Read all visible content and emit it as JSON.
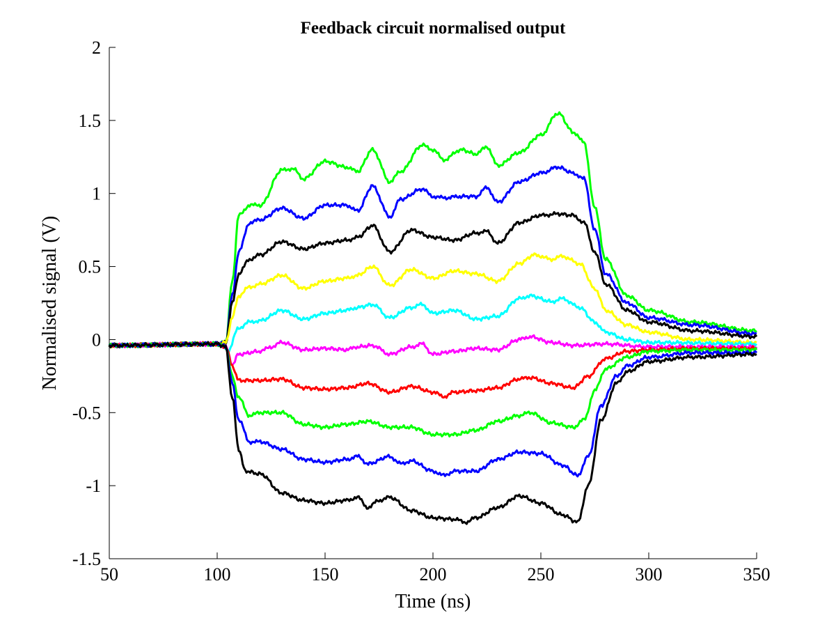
{
  "chart_data": {
    "type": "line",
    "title": "Feedback circuit normalised output",
    "xlabel": "Time (ns)",
    "ylabel": "Normalised signal (V)",
    "xlim": [
      50,
      350
    ],
    "ylim": [
      -1.5,
      2
    ],
    "xticks": [
      50,
      100,
      150,
      200,
      250,
      300,
      350
    ],
    "xtick_labels": [
      "50",
      "100",
      "150",
      "200",
      "250",
      "300",
      "350"
    ],
    "yticks": [
      -1.5,
      -1,
      -0.5,
      0,
      0.5,
      1,
      1.5,
      2
    ],
    "ytick_labels": [
      "-1.5",
      "-1",
      "-0.5",
      "0",
      "0.5",
      "1",
      "1.5",
      "2"
    ],
    "grid": false,
    "series": [
      {
        "name": "green-upper",
        "color": "#00ff00",
        "points": [
          [
            50,
            -0.04
          ],
          [
            100,
            -0.03
          ],
          [
            104,
            -0.02
          ],
          [
            107,
            0.4
          ],
          [
            110,
            0.85
          ],
          [
            115,
            0.92
          ],
          [
            120,
            0.92
          ],
          [
            130,
            1.16
          ],
          [
            135,
            1.17
          ],
          [
            140,
            1.1
          ],
          [
            150,
            1.22
          ],
          [
            160,
            1.18
          ],
          [
            165,
            1.15
          ],
          [
            172,
            1.3
          ],
          [
            180,
            1.08
          ],
          [
            185,
            1.15
          ],
          [
            195,
            1.33
          ],
          [
            200,
            1.3
          ],
          [
            205,
            1.23
          ],
          [
            213,
            1.3
          ],
          [
            220,
            1.27
          ],
          [
            225,
            1.32
          ],
          [
            230,
            1.19
          ],
          [
            240,
            1.28
          ],
          [
            250,
            1.4
          ],
          [
            258,
            1.55
          ],
          [
            265,
            1.42
          ],
          [
            270,
            1.35
          ],
          [
            275,
            0.9
          ],
          [
            280,
            0.55
          ],
          [
            290,
            0.3
          ],
          [
            300,
            0.2
          ],
          [
            320,
            0.12
          ],
          [
            350,
            0.06
          ]
        ]
      },
      {
        "name": "blue-upper",
        "color": "#0000ff",
        "points": [
          [
            50,
            -0.04
          ],
          [
            100,
            -0.03
          ],
          [
            104,
            -0.02
          ],
          [
            107,
            0.3
          ],
          [
            110,
            0.6
          ],
          [
            115,
            0.8
          ],
          [
            120,
            0.82
          ],
          [
            130,
            0.9
          ],
          [
            140,
            0.83
          ],
          [
            150,
            0.92
          ],
          [
            160,
            0.92
          ],
          [
            165,
            0.88
          ],
          [
            172,
            1.05
          ],
          [
            180,
            0.84
          ],
          [
            185,
            0.96
          ],
          [
            195,
            1.03
          ],
          [
            200,
            0.98
          ],
          [
            205,
            0.97
          ],
          [
            213,
            0.98
          ],
          [
            220,
            0.98
          ],
          [
            225,
            1.04
          ],
          [
            230,
            0.94
          ],
          [
            240,
            1.08
          ],
          [
            250,
            1.14
          ],
          [
            258,
            1.18
          ],
          [
            265,
            1.14
          ],
          [
            270,
            1.1
          ],
          [
            275,
            0.75
          ],
          [
            280,
            0.45
          ],
          [
            290,
            0.25
          ],
          [
            300,
            0.15
          ],
          [
            320,
            0.1
          ],
          [
            350,
            0.04
          ]
        ]
      },
      {
        "name": "black-upper",
        "color": "#000000",
        "points": [
          [
            50,
            -0.04
          ],
          [
            100,
            -0.03
          ],
          [
            104,
            -0.02
          ],
          [
            107,
            0.25
          ],
          [
            110,
            0.45
          ],
          [
            115,
            0.55
          ],
          [
            120,
            0.58
          ],
          [
            130,
            0.67
          ],
          [
            140,
            0.62
          ],
          [
            150,
            0.66
          ],
          [
            160,
            0.68
          ],
          [
            165,
            0.7
          ],
          [
            172,
            0.78
          ],
          [
            180,
            0.6
          ],
          [
            190,
            0.75
          ],
          [
            200,
            0.7
          ],
          [
            210,
            0.68
          ],
          [
            220,
            0.73
          ],
          [
            225,
            0.74
          ],
          [
            230,
            0.66
          ],
          [
            240,
            0.8
          ],
          [
            250,
            0.85
          ],
          [
            258,
            0.86
          ],
          [
            265,
            0.85
          ],
          [
            270,
            0.8
          ],
          [
            275,
            0.6
          ],
          [
            280,
            0.38
          ],
          [
            290,
            0.2
          ],
          [
            300,
            0.12
          ],
          [
            320,
            0.06
          ],
          [
            350,
            0.02
          ]
        ]
      },
      {
        "name": "yellow",
        "color": "#ffff00",
        "points": [
          [
            50,
            -0.04
          ],
          [
            100,
            -0.03
          ],
          [
            104,
            -0.02
          ],
          [
            107,
            0.15
          ],
          [
            110,
            0.3
          ],
          [
            115,
            0.36
          ],
          [
            120,
            0.38
          ],
          [
            130,
            0.44
          ],
          [
            140,
            0.35
          ],
          [
            150,
            0.4
          ],
          [
            160,
            0.42
          ],
          [
            165,
            0.44
          ],
          [
            172,
            0.5
          ],
          [
            180,
            0.37
          ],
          [
            190,
            0.48
          ],
          [
            200,
            0.42
          ],
          [
            210,
            0.47
          ],
          [
            220,
            0.45
          ],
          [
            230,
            0.4
          ],
          [
            240,
            0.52
          ],
          [
            247,
            0.58
          ],
          [
            255,
            0.55
          ],
          [
            260,
            0.57
          ],
          [
            268,
            0.52
          ],
          [
            275,
            0.35
          ],
          [
            280,
            0.2
          ],
          [
            290,
            0.1
          ],
          [
            300,
            0.05
          ],
          [
            320,
            0.0
          ],
          [
            350,
            -0.02
          ]
        ]
      },
      {
        "name": "cyan",
        "color": "#00ffff",
        "points": [
          [
            50,
            -0.04
          ],
          [
            100,
            -0.03
          ],
          [
            103,
            -0.04
          ],
          [
            105,
            -0.08
          ],
          [
            110,
            0.08
          ],
          [
            115,
            0.12
          ],
          [
            120,
            0.13
          ],
          [
            130,
            0.2
          ],
          [
            140,
            0.14
          ],
          [
            150,
            0.18
          ],
          [
            160,
            0.2
          ],
          [
            165,
            0.22
          ],
          [
            172,
            0.24
          ],
          [
            180,
            0.15
          ],
          [
            190,
            0.22
          ],
          [
            195,
            0.24
          ],
          [
            200,
            0.18
          ],
          [
            210,
            0.2
          ],
          [
            220,
            0.14
          ],
          [
            230,
            0.16
          ],
          [
            240,
            0.28
          ],
          [
            245,
            0.3
          ],
          [
            255,
            0.26
          ],
          [
            260,
            0.28
          ],
          [
            268,
            0.22
          ],
          [
            275,
            0.12
          ],
          [
            280,
            0.05
          ],
          [
            290,
            0.0
          ],
          [
            300,
            -0.02
          ],
          [
            350,
            -0.03
          ]
        ]
      },
      {
        "name": "magenta",
        "color": "#ff00ff",
        "points": [
          [
            50,
            -0.04
          ],
          [
            100,
            -0.03
          ],
          [
            104,
            -0.05
          ],
          [
            107,
            -0.17
          ],
          [
            110,
            -0.1
          ],
          [
            120,
            -0.08
          ],
          [
            125,
            -0.05
          ],
          [
            130,
            -0.02
          ],
          [
            140,
            -0.07
          ],
          [
            150,
            -0.06
          ],
          [
            160,
            -0.07
          ],
          [
            165,
            -0.05
          ],
          [
            172,
            -0.04
          ],
          [
            180,
            -0.1
          ],
          [
            190,
            -0.05
          ],
          [
            195,
            -0.03
          ],
          [
            200,
            -0.1
          ],
          [
            210,
            -0.08
          ],
          [
            220,
            -0.06
          ],
          [
            230,
            -0.07
          ],
          [
            240,
            0.0
          ],
          [
            245,
            0.02
          ],
          [
            255,
            -0.02
          ],
          [
            265,
            -0.04
          ],
          [
            280,
            -0.03
          ],
          [
            300,
            -0.05
          ],
          [
            350,
            -0.05
          ]
        ]
      },
      {
        "name": "red",
        "color": "#ff0000",
        "points": [
          [
            50,
            -0.04
          ],
          [
            100,
            -0.03
          ],
          [
            104,
            -0.05
          ],
          [
            107,
            -0.18
          ],
          [
            110,
            -0.28
          ],
          [
            120,
            -0.28
          ],
          [
            130,
            -0.27
          ],
          [
            140,
            -0.33
          ],
          [
            150,
            -0.34
          ],
          [
            160,
            -0.33
          ],
          [
            170,
            -0.3
          ],
          [
            180,
            -0.36
          ],
          [
            190,
            -0.32
          ],
          [
            200,
            -0.36
          ],
          [
            205,
            -0.39
          ],
          [
            210,
            -0.36
          ],
          [
            220,
            -0.35
          ],
          [
            230,
            -0.33
          ],
          [
            240,
            -0.27
          ],
          [
            245,
            -0.26
          ],
          [
            255,
            -0.3
          ],
          [
            265,
            -0.33
          ],
          [
            272,
            -0.25
          ],
          [
            280,
            -0.13
          ],
          [
            290,
            -0.08
          ],
          [
            300,
            -0.07
          ],
          [
            320,
            -0.06
          ],
          [
            350,
            -0.06
          ]
        ]
      },
      {
        "name": "green-lower",
        "color": "#00ff00",
        "points": [
          [
            50,
            -0.04
          ],
          [
            100,
            -0.03
          ],
          [
            104,
            -0.05
          ],
          [
            107,
            -0.25
          ],
          [
            110,
            -0.4
          ],
          [
            115,
            -0.52
          ],
          [
            120,
            -0.5
          ],
          [
            130,
            -0.5
          ],
          [
            140,
            -0.58
          ],
          [
            150,
            -0.6
          ],
          [
            160,
            -0.58
          ],
          [
            170,
            -0.56
          ],
          [
            180,
            -0.6
          ],
          [
            190,
            -0.6
          ],
          [
            200,
            -0.65
          ],
          [
            210,
            -0.65
          ],
          [
            220,
            -0.62
          ],
          [
            230,
            -0.56
          ],
          [
            240,
            -0.52
          ],
          [
            245,
            -0.5
          ],
          [
            255,
            -0.57
          ],
          [
            265,
            -0.6
          ],
          [
            270,
            -0.55
          ],
          [
            275,
            -0.35
          ],
          [
            280,
            -0.2
          ],
          [
            290,
            -0.12
          ],
          [
            300,
            -0.08
          ],
          [
            320,
            -0.07
          ],
          [
            350,
            -0.07
          ]
        ]
      },
      {
        "name": "blue-lower",
        "color": "#0000ff",
        "points": [
          [
            50,
            -0.04
          ],
          [
            100,
            -0.03
          ],
          [
            104,
            -0.05
          ],
          [
            107,
            -0.3
          ],
          [
            110,
            -0.55
          ],
          [
            115,
            -0.7
          ],
          [
            120,
            -0.7
          ],
          [
            130,
            -0.75
          ],
          [
            140,
            -0.82
          ],
          [
            150,
            -0.84
          ],
          [
            160,
            -0.82
          ],
          [
            165,
            -0.8
          ],
          [
            170,
            -0.85
          ],
          [
            180,
            -0.8
          ],
          [
            185,
            -0.85
          ],
          [
            190,
            -0.83
          ],
          [
            200,
            -0.9
          ],
          [
            205,
            -0.93
          ],
          [
            210,
            -0.9
          ],
          [
            220,
            -0.9
          ],
          [
            230,
            -0.82
          ],
          [
            240,
            -0.77
          ],
          [
            250,
            -0.78
          ],
          [
            260,
            -0.86
          ],
          [
            267,
            -0.93
          ],
          [
            272,
            -0.8
          ],
          [
            278,
            -0.45
          ],
          [
            285,
            -0.25
          ],
          [
            290,
            -0.18
          ],
          [
            300,
            -0.12
          ],
          [
            320,
            -0.09
          ],
          [
            350,
            -0.09
          ]
        ]
      },
      {
        "name": "black-lower",
        "color": "#000000",
        "points": [
          [
            50,
            -0.04
          ],
          [
            100,
            -0.03
          ],
          [
            104,
            -0.05
          ],
          [
            107,
            -0.4
          ],
          [
            110,
            -0.75
          ],
          [
            113,
            -0.9
          ],
          [
            120,
            -0.92
          ],
          [
            130,
            -1.05
          ],
          [
            140,
            -1.1
          ],
          [
            150,
            -1.12
          ],
          [
            160,
            -1.1
          ],
          [
            165,
            -1.08
          ],
          [
            170,
            -1.15
          ],
          [
            175,
            -1.1
          ],
          [
            180,
            -1.08
          ],
          [
            190,
            -1.17
          ],
          [
            200,
            -1.22
          ],
          [
            210,
            -1.23
          ],
          [
            215,
            -1.25
          ],
          [
            220,
            -1.22
          ],
          [
            230,
            -1.15
          ],
          [
            240,
            -1.07
          ],
          [
            250,
            -1.12
          ],
          [
            260,
            -1.2
          ],
          [
            267,
            -1.25
          ],
          [
            272,
            -1.0
          ],
          [
            278,
            -0.55
          ],
          [
            285,
            -0.3
          ],
          [
            290,
            -0.22
          ],
          [
            300,
            -0.15
          ],
          [
            320,
            -0.12
          ],
          [
            350,
            -0.1
          ]
        ]
      }
    ]
  }
}
